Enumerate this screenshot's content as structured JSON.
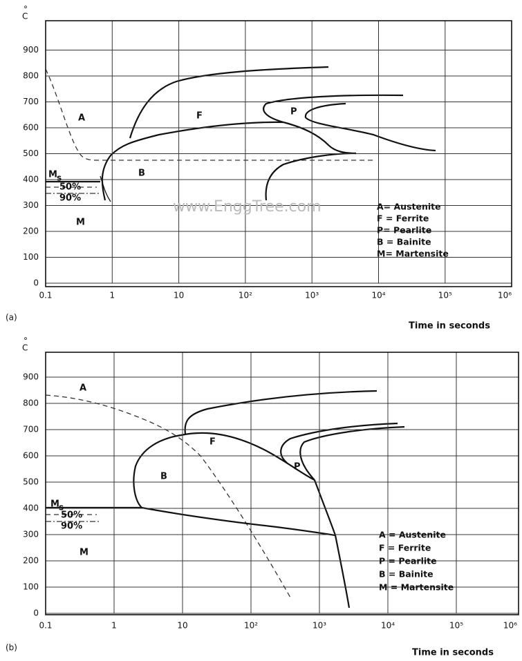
{
  "panels": [
    {
      "panel_label": "(a)",
      "degree": "°",
      "unit": "C",
      "yticks": [
        "0",
        "100",
        "200",
        "300",
        "400",
        "500",
        "600",
        "700",
        "800",
        "900"
      ],
      "xticks": [
        "0.1",
        "1",
        "10",
        "10²",
        "10³",
        "10⁴",
        "10⁵",
        "10⁶"
      ],
      "xlabel": "Time in seconds",
      "regions": {
        "A": "A",
        "F": "F",
        "P": "P",
        "B": "B",
        "M": "M",
        "Ms": "M",
        "Ms_sub": "s"
      },
      "percent_50": "50%",
      "percent_90": "90%",
      "watermark": "www.EnggTree.com",
      "legend": [
        "A= Austenite",
        "F = Ferrite",
        "P= Pearlite",
        "B = Bainite",
        "M= Martensite"
      ]
    },
    {
      "panel_label": "(b)",
      "degree": "°",
      "unit": "C",
      "yticks": [
        "0",
        "100",
        "200",
        "300",
        "400",
        "500",
        "600",
        "700",
        "800",
        "900"
      ],
      "xticks": [
        "0.1",
        "1",
        "10",
        "10²",
        "10³",
        "10⁴",
        "10⁵",
        "10⁶"
      ],
      "xlabel": "Time in seconds",
      "regions": {
        "A": "A",
        "F": "F",
        "P": "P",
        "B": "B",
        "M": "M",
        "Ms": "M",
        "Ms_sub": "s"
      },
      "percent_50": "50%",
      "percent_90": "90%",
      "legend": [
        "A = Austenite",
        "F = Ferrite",
        "P = Pearlite",
        "B = Bainite",
        "M = Martensite"
      ]
    }
  ]
}
